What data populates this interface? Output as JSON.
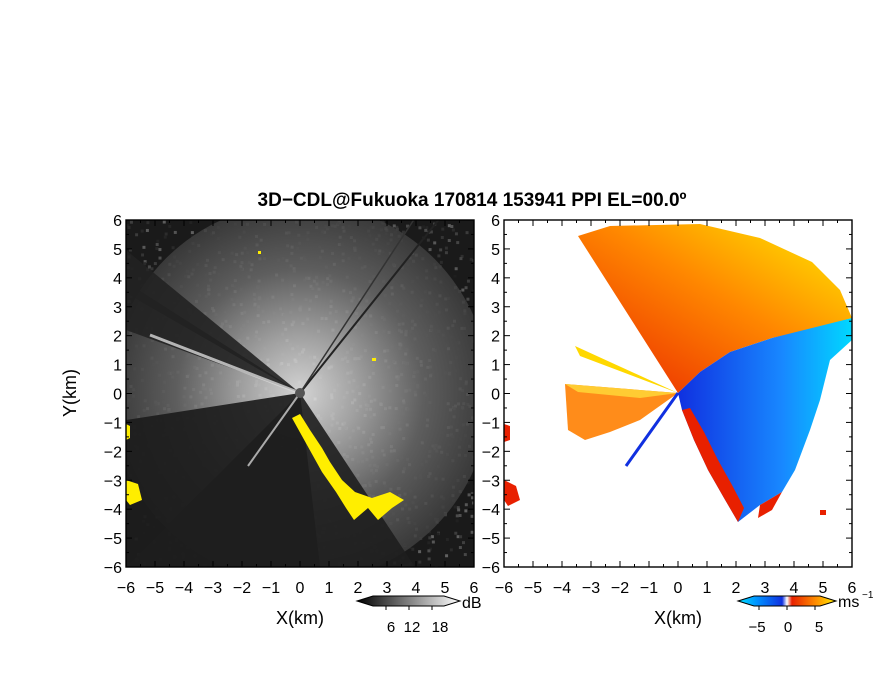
{
  "title": "3D−CDL@Fukuoka 170814 153941 PPI EL=00.0º",
  "colors": {
    "snr_low": "#141414",
    "snr_high": "#f0f0f0",
    "highlight": "#ffee00",
    "vel_neg_strong": "#1030e0",
    "vel_neg_light": "#00d8ff",
    "vel_zero": "#ffffff",
    "vel_pos_light": "#ffd800",
    "vel_pos_strong": "#e82000"
  },
  "chart_data": [
    {
      "type": "heatmap",
      "panel": "snr",
      "xlabel": "X(km)",
      "ylabel": "Y(km)",
      "xlim": [
        -6,
        6
      ],
      "ylim": [
        -6,
        6
      ],
      "xticks": [
        "−6",
        "−5",
        "−4",
        "−3",
        "−2",
        "−1",
        "0",
        "1",
        "2",
        "3",
        "4",
        "5",
        "6"
      ],
      "yticks": [
        "6",
        "5",
        "4",
        "3",
        "2",
        "1",
        "0",
        "−1",
        "−2",
        "−3",
        "−4",
        "−5",
        "−6"
      ],
      "colorbar": {
        "unit": "dB",
        "ticks": [
          "6",
          "12",
          "18"
        ],
        "range": [
          0,
          24
        ]
      }
    },
    {
      "type": "heatmap",
      "panel": "velocity",
      "xlabel": "X(km)",
      "xlim": [
        -6,
        6
      ],
      "ylim": [
        -6,
        6
      ],
      "xticks": [
        "−6",
        "−5",
        "−4",
        "−3",
        "−2",
        "−1",
        "0",
        "1",
        "2",
        "3",
        "4",
        "5",
        "6"
      ],
      "yticks": [
        "6",
        "5",
        "4",
        "3",
        "2",
        "1",
        "0",
        "−1",
        "−2",
        "−3",
        "−4",
        "−5",
        "−6"
      ],
      "colorbar": {
        "unit": "ms",
        "unit_exponent": "−1",
        "ticks": [
          "−5",
          "0",
          "5"
        ],
        "range": [
          -7.5,
          7.5
        ]
      }
    }
  ]
}
